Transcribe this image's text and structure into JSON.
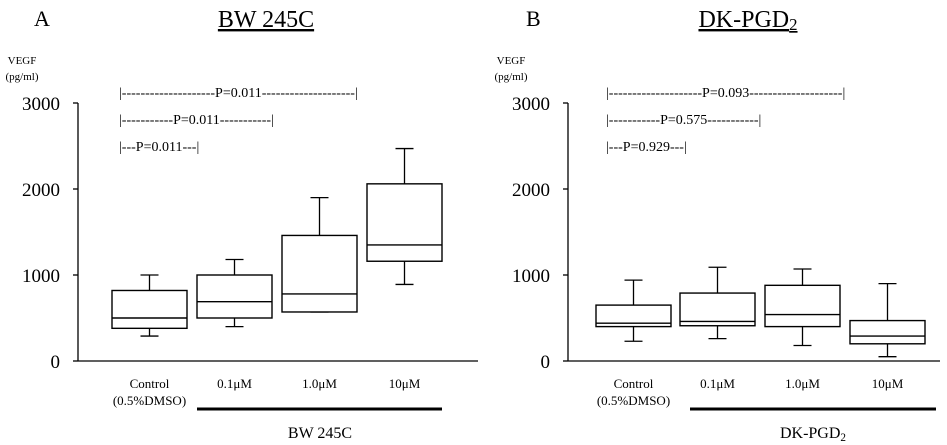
{
  "chart_data": [
    {
      "type": "box",
      "panel": "A",
      "title": "BW 245C",
      "ylabel_line1": "VEGF",
      "ylabel_line2": "(pg/ml)",
      "ylim": [
        0,
        3000
      ],
      "yticks": [
        "0",
        "1000",
        "2000",
        "3000"
      ],
      "categories": [
        {
          "line1": "Control",
          "line2": "(0.5%DMSO)"
        },
        {
          "line1": "0.1μM",
          "line2": ""
        },
        {
          "line1": "1.0μM",
          "line2": ""
        },
        {
          "line1": "10μM",
          "line2": ""
        }
      ],
      "treatment_label": "BW 245C",
      "boxes": [
        {
          "min": 290,
          "q1": 380,
          "median": 500,
          "q3": 820,
          "max": 1000
        },
        {
          "min": 400,
          "q1": 500,
          "median": 690,
          "q3": 1000,
          "max": 1180
        },
        {
          "min": 570,
          "q1": 570,
          "median": 780,
          "q3": 1460,
          "max": 1900
        },
        {
          "min": 890,
          "q1": 1160,
          "median": 1350,
          "q3": 2060,
          "max": 2470
        }
      ],
      "comparisons": [
        {
          "text": "|--------------------P=0.011--------------------|",
          "from": 0,
          "to": 3,
          "level": 0
        },
        {
          "text": "|-----------P=0.011-----------|",
          "from": 0,
          "to": 2,
          "level": 1
        },
        {
          "text": "|---P=0.011---|",
          "from": 0,
          "to": 1,
          "level": 2
        }
      ]
    },
    {
      "type": "box",
      "panel": "B",
      "title": "DK-PGD2",
      "ylabel_line1": "VEGF",
      "ylabel_line2": "(pg/ml)",
      "ylim": [
        0,
        3000
      ],
      "yticks": [
        "0",
        "1000",
        "2000",
        "3000"
      ],
      "categories": [
        {
          "line1": "Control",
          "line2": "(0.5%DMSO)"
        },
        {
          "line1": "0.1μM",
          "line2": ""
        },
        {
          "line1": "1.0μM",
          "line2": ""
        },
        {
          "line1": "10μM",
          "line2": ""
        }
      ],
      "treatment_label": "DK-PGD2",
      "boxes": [
        {
          "min": 230,
          "q1": 400,
          "median": 440,
          "q3": 650,
          "max": 940
        },
        {
          "min": 260,
          "q1": 410,
          "median": 460,
          "q3": 790,
          "max": 1090
        },
        {
          "min": 180,
          "q1": 400,
          "median": 540,
          "q3": 880,
          "max": 1070
        },
        {
          "min": 50,
          "q1": 200,
          "median": 290,
          "q3": 470,
          "max": 900
        }
      ],
      "comparisons": [
        {
          "text": "|--------------------P=0.093--------------------|",
          "from": 0,
          "to": 3,
          "level": 0
        },
        {
          "text": "|-----------P=0.575-----------|",
          "from": 0,
          "to": 2,
          "level": 1
        },
        {
          "text": "|---P=0.929---|",
          "from": 0,
          "to": 1,
          "level": 2
        }
      ]
    }
  ]
}
